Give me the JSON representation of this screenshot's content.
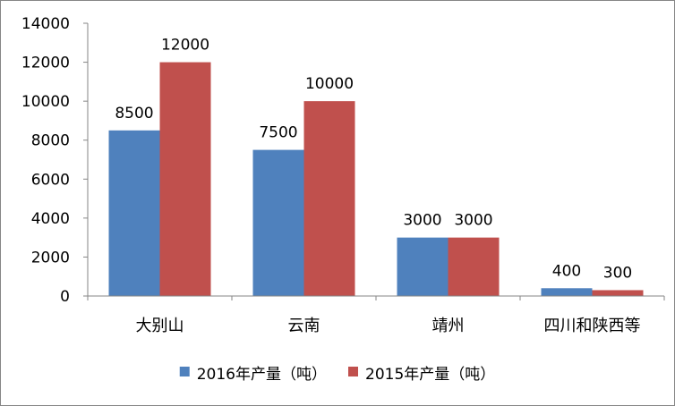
{
  "chart_data": {
    "type": "bar",
    "categories": [
      "大别山",
      "云南",
      "靖州",
      "四川和陕西等"
    ],
    "series": [
      {
        "name": "2016年产量（吨）",
        "values": [
          8500,
          7500,
          3000,
          400
        ],
        "color": "#4F81BD"
      },
      {
        "name": "2015年产量（吨）",
        "values": [
          12000,
          10000,
          3000,
          300
        ],
        "color": "#C0504D"
      }
    ],
    "title": "",
    "xlabel": "",
    "ylabel": "",
    "ylim": [
      0,
      14000
    ],
    "yticks": [
      0,
      2000,
      4000,
      6000,
      8000,
      10000,
      12000,
      14000
    ],
    "grid": false,
    "legend_position": "bottom",
    "data_labels": true
  }
}
